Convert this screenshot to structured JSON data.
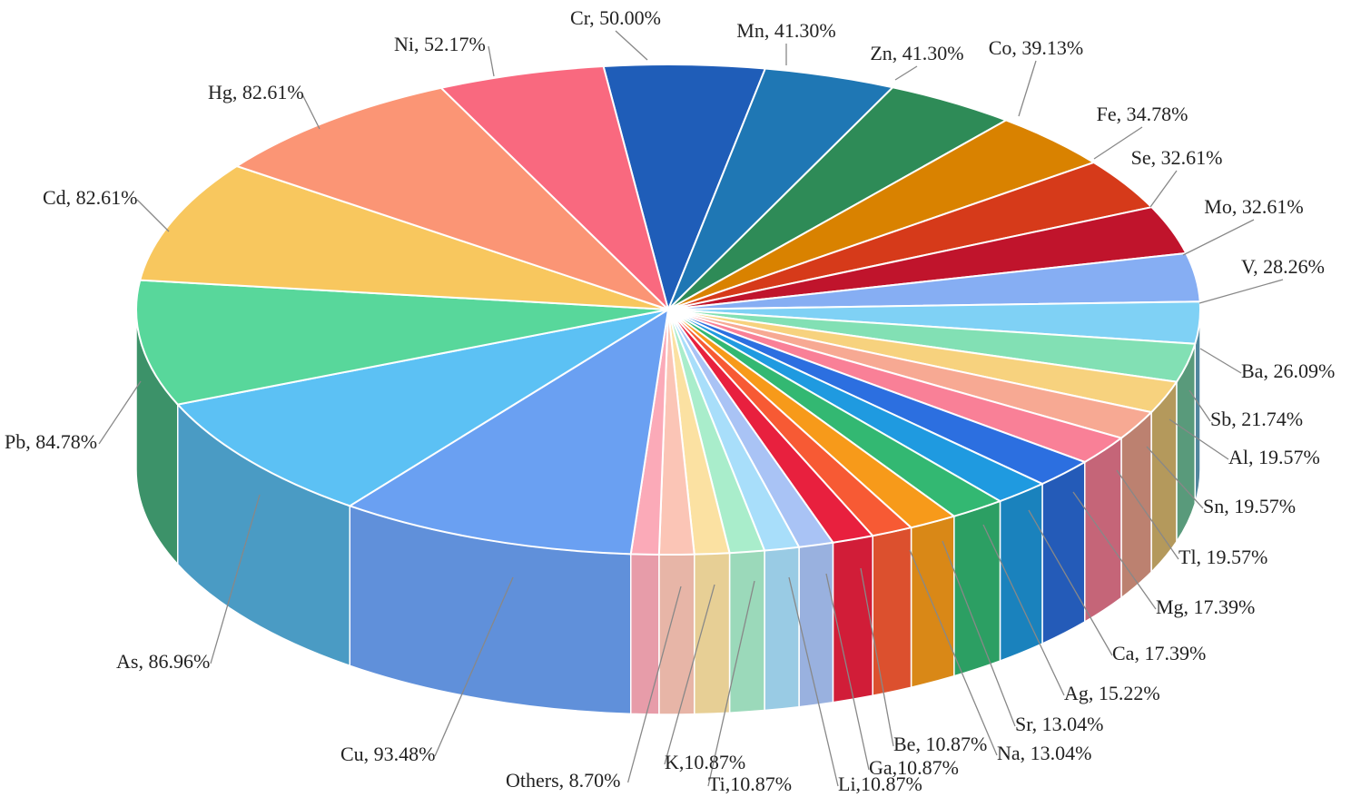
{
  "chart_data": {
    "type": "pie",
    "title": "",
    "style": "3d-exploded-depth",
    "slices": [
      {
        "label": "Cr, 50.00%",
        "element": "Cr",
        "value": 50.0,
        "color": "#1f5db8"
      },
      {
        "label": "Mn, 41.30%",
        "element": "Mn",
        "value": 41.3,
        "color": "#1f77b4"
      },
      {
        "label": "Zn, 41.30%",
        "element": "Zn",
        "value": 41.3,
        "color": "#2e8b57"
      },
      {
        "label": "Co, 39.13%",
        "element": "Co",
        "value": 39.13,
        "color": "#d98200"
      },
      {
        "label": "Fe, 34.78%",
        "element": "Fe",
        "value": 34.78,
        "color": "#d63a1a"
      },
      {
        "label": "Se, 32.61%",
        "element": "Se",
        "value": 32.61,
        "color": "#c0142c"
      },
      {
        "label": "Mo, 32.61%",
        "element": "Mo",
        "value": 32.61,
        "color": "#86aef3"
      },
      {
        "label": "V, 28.26%",
        "element": "V",
        "value": 28.26,
        "color": "#7fd1f5"
      },
      {
        "label": "Ba, 26.09%",
        "element": "Ba",
        "value": 26.09,
        "color": "#82e0b4"
      },
      {
        "label": "Sb, 21.74%",
        "element": "Sb",
        "value": 21.74,
        "color": "#f7d27e"
      },
      {
        "label": "Al, 19.57%",
        "element": "Al",
        "value": 19.57,
        "color": "#f7a993"
      },
      {
        "label": "Sn, 19.57%",
        "element": "Sn",
        "value": 19.57,
        "color": "#f98097"
      },
      {
        "label": "Tl, 19.57%",
        "element": "Tl",
        "value": 19.57,
        "color": "#2c6fe0"
      },
      {
        "label": "Mg, 17.39%",
        "element": "Mg",
        "value": 17.39,
        "color": "#1f9ae0"
      },
      {
        "label": "Ca, 17.39%",
        "element": "Ca",
        "value": 17.39,
        "color": "#33b872"
      },
      {
        "label": "Ag, 15.22%",
        "element": "Ag",
        "value": 15.22,
        "color": "#f79a1a"
      },
      {
        "label": "Sr, 13.04%",
        "element": "Sr",
        "value": 13.04,
        "color": "#f75a34"
      },
      {
        "label": "Na, 13.04%",
        "element": "Na",
        "value": 13.04,
        "color": "#e8203e"
      },
      {
        "label": "Be, 10.87%",
        "element": "Be",
        "value": 10.87,
        "color": "#a9c3f5"
      },
      {
        "label": "Ga,10.87%",
        "element": "Ga",
        "value": 10.87,
        "color": "#a8defa"
      },
      {
        "label": "Li,10.87%",
        "element": "Li",
        "value": 10.87,
        "color": "#a9edcb"
      },
      {
        "label": "Ti,10.87%",
        "element": "Ti",
        "value": 10.87,
        "color": "#fbe1a2"
      },
      {
        "label": "K,10.87%",
        "element": "K",
        "value": 10.87,
        "color": "#fbc5b6"
      },
      {
        "label": "Others, 8.70%",
        "element": "Others",
        "value": 8.7,
        "color": "#fbaab8"
      },
      {
        "label": "Cu, 93.48%",
        "element": "Cu",
        "value": 93.48,
        "color": "#6aa0f2"
      },
      {
        "label": "As, 86.96%",
        "element": "As",
        "value": 86.96,
        "color": "#5cc1f4"
      },
      {
        "label": "Pb, 84.78%",
        "element": "Pb",
        "value": 84.78,
        "color": "#58d79b"
      },
      {
        "label": "Cd, 82.61%",
        "element": "Cd",
        "value": 82.61,
        "color": "#f8c75e"
      },
      {
        "label": "Hg, 82.61%",
        "element": "Hg",
        "value": 82.61,
        "color": "#fb9575"
      },
      {
        "label": "Ni, 52.17%",
        "element": "Ni",
        "value": 52.17,
        "color": "#f9697f"
      }
    ]
  }
}
